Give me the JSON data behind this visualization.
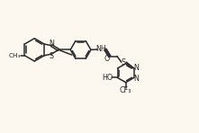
{
  "bg_color": "#fcf8ef",
  "line_color": "#2a2a2a",
  "text_color": "#2a2a2a",
  "lw": 1.1,
  "font_size": 5.8,
  "fig_width": 2.21,
  "fig_height": 1.48,
  "dpi": 100,
  "xlim": [
    0,
    10
  ],
  "ylim": [
    0,
    6.7
  ]
}
